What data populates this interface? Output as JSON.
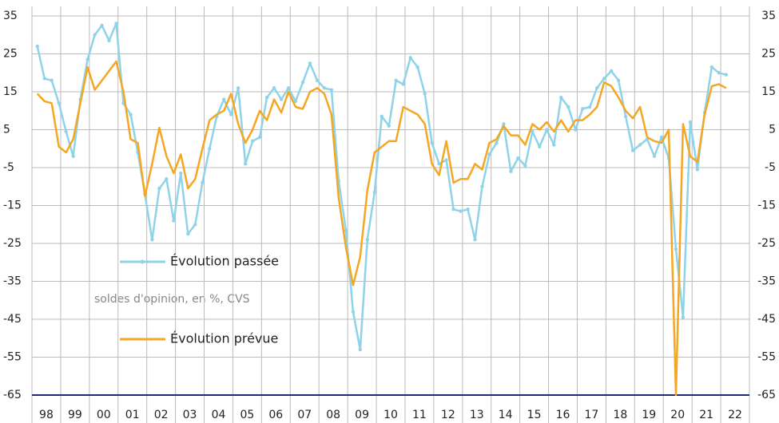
{
  "chart_data": {
    "type": "line",
    "subtitle": "soldes d'opinion, en %, CVS",
    "categories": [
      "98",
      null,
      null,
      null,
      "99",
      null,
      null,
      null,
      "00",
      null,
      null,
      null,
      "01",
      null,
      null,
      null,
      "02",
      null,
      null,
      null,
      "03",
      null,
      null,
      null,
      "04",
      null,
      null,
      null,
      "05",
      null,
      null,
      null,
      "06",
      null,
      null,
      null,
      "07",
      null,
      null,
      null,
      "08",
      null,
      null,
      null,
      "09",
      null,
      null,
      null,
      "10",
      null,
      null,
      null,
      "11",
      null,
      null,
      null,
      "12",
      null,
      null,
      null,
      "13",
      null,
      null,
      null,
      "14",
      null,
      null,
      null,
      "15",
      null,
      null,
      null,
      "16",
      null,
      null,
      null,
      "17",
      null,
      null,
      null,
      "18",
      null,
      null,
      null,
      "19",
      null,
      null,
      null,
      "20",
      null,
      null,
      null,
      "21",
      null,
      null,
      null,
      "22"
    ],
    "series": [
      {
        "name": "Évolution passée",
        "color": "#8fd3e8",
        "markers": true,
        "values": [
          27,
          18.5,
          18,
          12,
          4.5,
          -2,
          13,
          23.5,
          30,
          32.5,
          28.5,
          33,
          12,
          9,
          -1,
          -12,
          -24,
          -10.5,
          -8,
          -19,
          -6.5,
          -22.5,
          -20,
          -9,
          0,
          8.5,
          13,
          9,
          16,
          -4,
          2,
          3,
          13.5,
          16,
          13,
          16,
          12.5,
          17.5,
          22.5,
          18,
          16,
          15.5,
          -8.5,
          -21.5,
          -43,
          -53,
          -24,
          -11.5,
          8.5,
          6,
          18,
          17,
          24,
          21.5,
          14.5,
          1.5,
          -4,
          -3,
          -16,
          -16.5,
          -16,
          -24,
          -10,
          -1.5,
          1.5,
          6.5,
          -6,
          -2.5,
          -4.5,
          4.5,
          0.5,
          5,
          1,
          13.5,
          11,
          5,
          10.5,
          11,
          16,
          18.5,
          20.5,
          18,
          8.5,
          -0.5,
          1,
          2.5,
          -2,
          3,
          -2.5,
          -26.5,
          -44.5,
          7,
          -5.5,
          9.5,
          21.5,
          20,
          19.5
        ]
      },
      {
        "name": "Évolution prévue",
        "color": "#f5a623",
        "markers": false,
        "values": [
          14.5,
          12.5,
          12,
          0.5,
          -1,
          2.5,
          12,
          21.5,
          15.5,
          18,
          20.5,
          23,
          15,
          2.5,
          1.5,
          -12.5,
          -4,
          5.5,
          -2,
          -6.5,
          -1.5,
          -10.5,
          -8,
          0,
          7.5,
          9,
          10,
          14.5,
          6.5,
          1.5,
          5,
          10,
          7.5,
          13,
          9.5,
          15,
          11,
          10.5,
          15,
          16,
          14.5,
          9,
          -13,
          -26,
          -36,
          -28.5,
          -11,
          -1,
          0.5,
          2,
          2,
          11,
          10,
          9,
          6.5,
          -4,
          -7,
          2,
          -9,
          -8,
          -8,
          -4,
          -5.5,
          1.5,
          2.5,
          6,
          3.5,
          3.5,
          1,
          6.5,
          5,
          7,
          4.5,
          7.5,
          4.5,
          7.5,
          7.5,
          9,
          11,
          17.5,
          16.5,
          13.5,
          10,
          8,
          11,
          3,
          2,
          1.5,
          5,
          -65,
          6.5,
          -2,
          -3.5,
          9,
          16.5,
          17,
          16
        ]
      }
    ],
    "ylim": [
      -65,
      35
    ],
    "yticks": [
      35,
      25,
      15,
      5,
      -5,
      -15,
      -25,
      -35,
      -45,
      -55,
      -65
    ],
    "y2lim": [
      -65,
      35
    ],
    "y2ticks": [
      35,
      25,
      15,
      5,
      -5,
      -15,
      -25,
      -35,
      -45,
      -55,
      -65
    ],
    "grid": true
  }
}
